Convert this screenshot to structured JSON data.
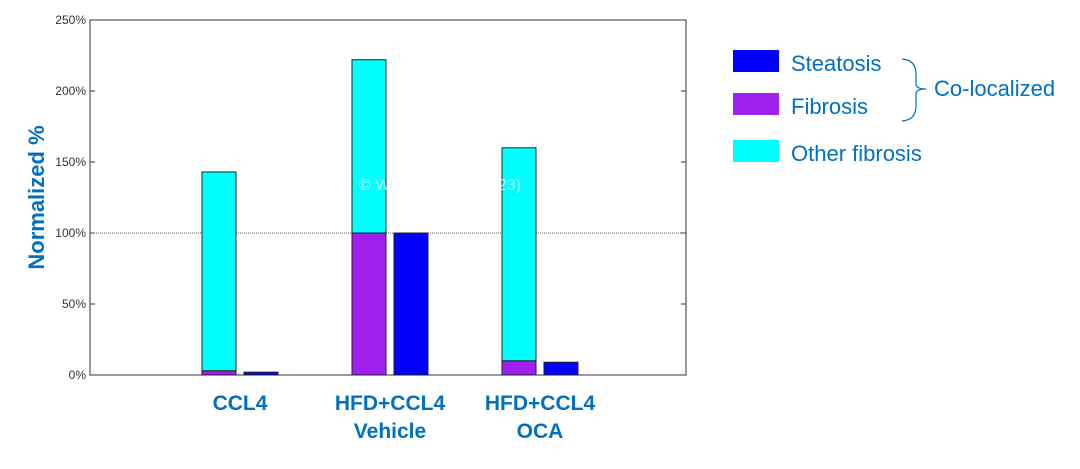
{
  "chart_data": {
    "type": "bar",
    "ylabel": "Normalized %",
    "xlabel": "",
    "ylim": [
      0,
      250
    ],
    "yticks": [
      0,
      50,
      100,
      150,
      200,
      250
    ],
    "ytick_labels": [
      "0%",
      "50%",
      "100%",
      "150%",
      "200%",
      "250%"
    ],
    "reference_line": 100,
    "grid": false,
    "categories": [
      {
        "lines": [
          "CCL4"
        ]
      },
      {
        "lines": [
          "HFD+CCL4",
          "Vehicle"
        ]
      },
      {
        "lines": [
          "HFD+CCL4",
          "OCA"
        ]
      }
    ],
    "stacked_bar": {
      "series": [
        {
          "name": "Fibrosis",
          "values": [
            3,
            100,
            10
          ]
        },
        {
          "name": "Other fibrosis",
          "values": [
            140,
            122,
            150
          ]
        }
      ]
    },
    "single_bar": {
      "series": [
        {
          "name": "Steatosis",
          "values": [
            2,
            100,
            9
          ]
        }
      ]
    },
    "legend": {
      "position": "right",
      "items": [
        {
          "label": "Steatosis",
          "color": "#0000FF"
        },
        {
          "label": "Fibrosis",
          "color": "#A020F0"
        },
        {
          "label": "Other fibrosis",
          "color": "#00FFFF"
        }
      ],
      "group_label": "Co-localized"
    },
    "watermark": "© WuXi AppTec (2023)"
  },
  "colors": {
    "Steatosis": "#0000FF",
    "Fibrosis": "#A020F0",
    "Other fibrosis": "#00FFFF",
    "text_accent": "#0070C0"
  }
}
